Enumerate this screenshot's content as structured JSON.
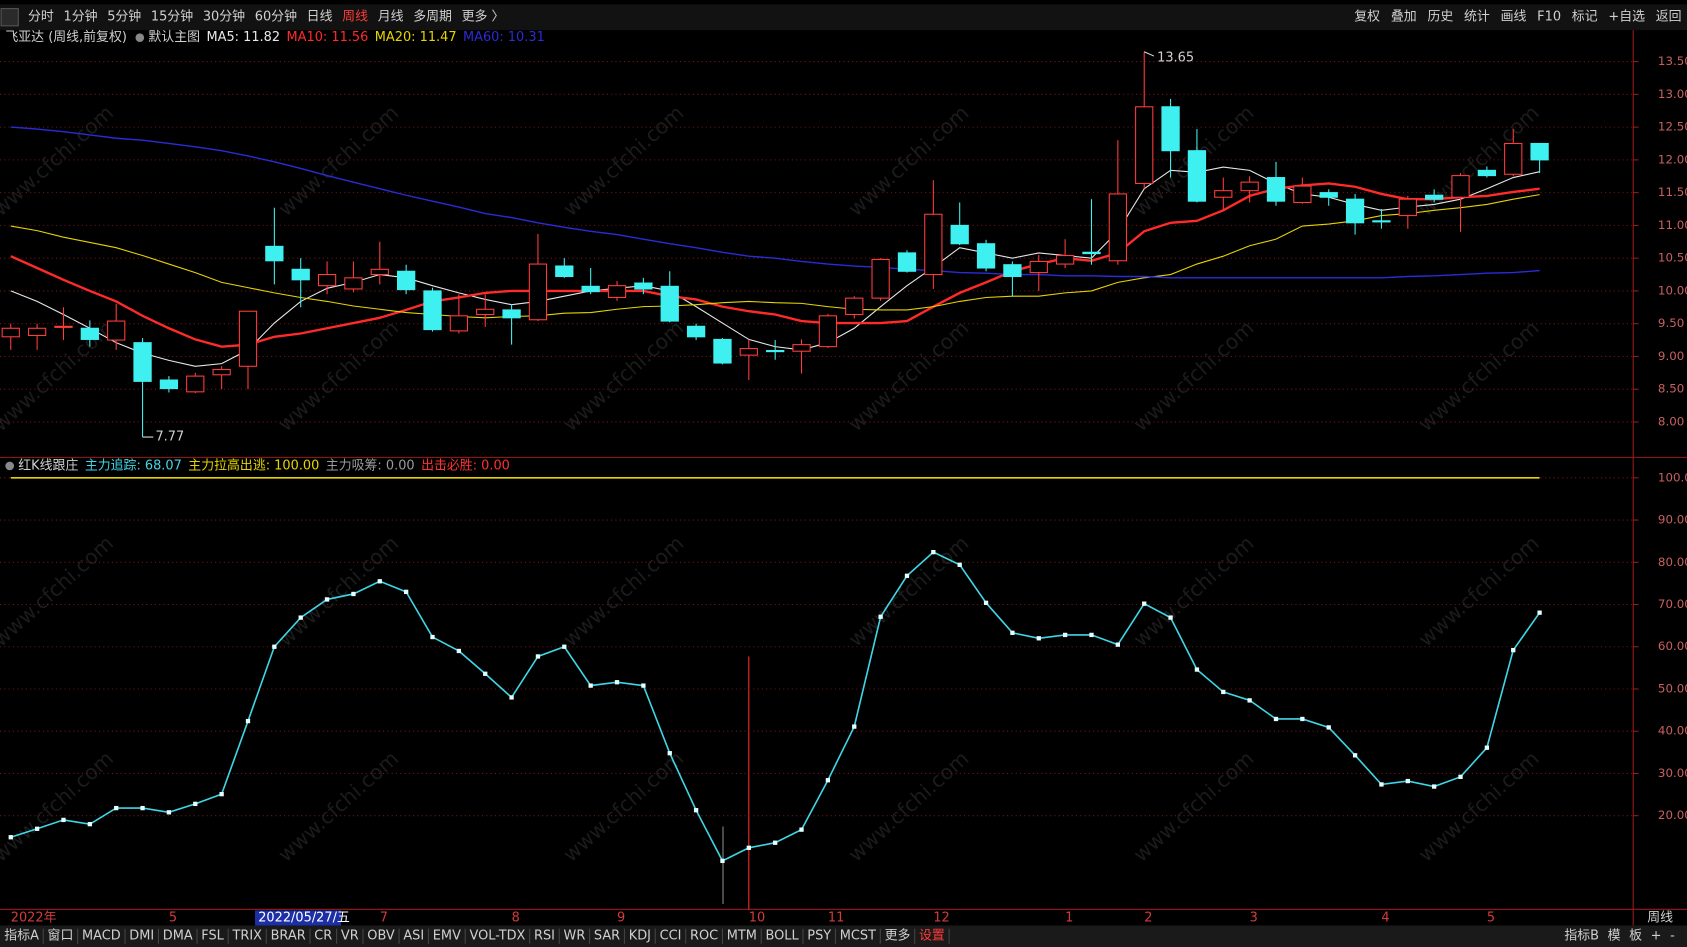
{
  "toolbar": {
    "left": [
      "分时",
      "1分钟",
      "5分钟",
      "15分钟",
      "30分钟",
      "60分钟",
      "日线",
      "周线",
      "月线",
      "多周期",
      "更多 〉"
    ],
    "active": "周线",
    "right": [
      "复权",
      "叠加",
      "历史",
      "统计",
      "画线",
      "F10",
      "标记",
      "+自选",
      "返回"
    ]
  },
  "bottom_tabs": {
    "left": [
      "指标A",
      "窗口",
      "MACD",
      "DMI",
      "DMA",
      "FSL",
      "TRIX",
      "BRAR",
      "CR",
      "VR",
      "OBV",
      "ASI",
      "EMV",
      "VOL-TDX",
      "RSI",
      "WR",
      "SAR",
      "KDJ",
      "CCI",
      "ROC",
      "MTM",
      "BOLL",
      "PSY",
      "MCST",
      "更多",
      "设置"
    ],
    "highlight": "设置",
    "right": [
      "指标B",
      "模",
      "板",
      "+",
      "-"
    ]
  },
  "watermark": "www.cfchi.com",
  "chart_data": [
    {
      "type": "candlestick",
      "title": "飞亚达 (周线,前复权)",
      "subtitle": "默认主图",
      "categories": [
        "2022年",
        null,
        null,
        null,
        null,
        null,
        "5",
        null,
        null,
        null,
        null,
        null,
        null,
        null,
        "7",
        null,
        null,
        null,
        null,
        "8",
        null,
        null,
        null,
        "9",
        null,
        null,
        null,
        null,
        "10",
        null,
        null,
        "11",
        null,
        null,
        null,
        "12",
        null,
        null,
        null,
        null,
        "1",
        null,
        null,
        "2",
        null,
        null,
        null,
        "3",
        null,
        null,
        null,
        null,
        "4",
        null,
        null,
        null,
        "5",
        null,
        null
      ],
      "cursor_label": "2022/05/27/五",
      "period_label": "周线",
      "open": [
        9.3,
        9.32,
        9.45,
        9.43,
        9.25,
        9.21,
        8.64,
        8.46,
        8.72,
        8.85,
        10.68,
        10.33,
        10.08,
        10.03,
        10.25,
        10.3,
        10.0,
        9.39,
        9.64,
        9.71,
        9.56,
        10.38,
        10.07,
        9.9,
        10.12,
        10.07,
        9.46,
        9.26,
        9.02,
        9.09,
        9.08,
        9.15,
        9.64,
        9.89,
        10.58,
        10.25,
        11.0,
        10.72,
        10.4,
        10.28,
        10.41,
        10.59,
        10.46,
        11.64,
        12.81,
        12.14,
        11.43,
        11.53,
        11.73,
        11.35,
        11.5,
        11.4,
        11.07,
        11.15,
        11.46,
        11.43,
        11.84,
        11.78,
        12.25
      ],
      "high": [
        9.5,
        9.5,
        9.75,
        9.55,
        9.8,
        9.28,
        8.7,
        8.75,
        8.85,
        9.69,
        11.27,
        10.5,
        10.45,
        10.45,
        10.75,
        10.4,
        10.05,
        9.95,
        9.95,
        9.8,
        10.87,
        10.5,
        10.35,
        10.15,
        10.2,
        10.3,
        9.5,
        9.28,
        9.26,
        9.25,
        9.26,
        9.65,
        9.92,
        10.5,
        10.62,
        11.69,
        11.35,
        10.78,
        10.45,
        10.55,
        10.79,
        11.4,
        12.3,
        13.65,
        12.93,
        12.47,
        11.73,
        11.75,
        11.97,
        11.73,
        11.55,
        11.48,
        11.25,
        11.45,
        11.55,
        11.8,
        11.9,
        12.47,
        12.25
      ],
      "low": [
        9.1,
        9.1,
        9.25,
        9.15,
        9.1,
        7.77,
        8.45,
        8.44,
        8.5,
        8.5,
        10.1,
        9.75,
        9.95,
        9.98,
        10.1,
        9.95,
        9.38,
        9.35,
        9.45,
        9.18,
        9.54,
        10.2,
        9.95,
        9.85,
        9.95,
        9.52,
        9.25,
        8.88,
        8.64,
        8.95,
        8.74,
        9.13,
        9.58,
        9.85,
        10.28,
        10.03,
        10.7,
        10.3,
        9.92,
        10.0,
        10.35,
        10.4,
        10.4,
        11.56,
        11.73,
        11.35,
        11.23,
        11.35,
        11.3,
        11.33,
        11.3,
        10.86,
        10.95,
        10.95,
        11.35,
        10.9,
        11.73,
        11.75,
        11.8
      ],
      "close": [
        9.43,
        9.43,
        9.46,
        9.26,
        9.54,
        8.62,
        8.51,
        8.7,
        8.8,
        9.69,
        10.46,
        10.17,
        10.25,
        10.2,
        10.33,
        10.02,
        9.41,
        9.62,
        9.72,
        9.59,
        10.41,
        10.22,
        9.99,
        10.08,
        10.03,
        9.54,
        9.3,
        8.9,
        9.12,
        9.08,
        9.18,
        9.62,
        9.89,
        10.48,
        10.3,
        11.17,
        10.72,
        10.35,
        10.22,
        10.45,
        10.54,
        10.57,
        11.48,
        12.81,
        12.14,
        11.37,
        11.53,
        11.66,
        11.37,
        11.6,
        11.43,
        11.04,
        11.06,
        11.4,
        11.4,
        11.76,
        11.76,
        12.25,
        12.0
      ],
      "up_color": "#ff3b3b",
      "down_color": "#3ff0f0",
      "series": [
        {
          "label": "MA5: 11.82",
          "color": "#e8e8e8",
          "width": 1,
          "values": [
            10.0,
            9.84,
            9.64,
            9.43,
            9.21,
            9.05,
            8.94,
            8.85,
            8.89,
            9.1,
            9.51,
            9.84,
            10.04,
            10.13,
            10.25,
            10.2,
            10.08,
            9.97,
            9.87,
            9.79,
            9.84,
            9.92,
            10.0,
            10.04,
            10.08,
            10.0,
            9.76,
            9.51,
            9.26,
            9.15,
            9.1,
            9.21,
            9.43,
            9.76,
            10.08,
            10.36,
            10.66,
            10.58,
            10.5,
            10.58,
            10.54,
            10.5,
            10.91,
            11.56,
            11.84,
            11.81,
            11.89,
            11.84,
            11.64,
            11.48,
            11.43,
            11.32,
            11.23,
            11.28,
            11.32,
            11.4,
            11.56,
            11.73,
            11.82
          ]
        },
        {
          "label": "MA10: 11.56",
          "color": "#ff2a2a",
          "width": 2.2,
          "values": [
            10.53,
            10.35,
            10.17,
            10.0,
            9.84,
            9.62,
            9.43,
            9.26,
            9.15,
            9.18,
            9.3,
            9.35,
            9.43,
            9.51,
            9.59,
            9.71,
            9.84,
            9.9,
            9.97,
            10.0,
            10.0,
            10.0,
            10.0,
            10.0,
            10.0,
            9.92,
            9.87,
            9.76,
            9.69,
            9.64,
            9.54,
            9.51,
            9.51,
            9.51,
            9.54,
            9.76,
            9.97,
            10.13,
            10.3,
            10.41,
            10.5,
            10.46,
            10.58,
            10.91,
            11.04,
            11.07,
            11.23,
            11.45,
            11.56,
            11.61,
            11.64,
            11.59,
            11.48,
            11.4,
            11.4,
            11.43,
            11.45,
            11.51,
            11.56
          ]
        },
        {
          "label": "MA20: 11.47",
          "color": "#e6d400",
          "width": 1,
          "values": [
            10.99,
            10.92,
            10.82,
            10.74,
            10.66,
            10.54,
            10.41,
            10.28,
            10.13,
            10.05,
            9.97,
            9.9,
            9.84,
            9.77,
            9.72,
            9.67,
            9.64,
            9.61,
            9.59,
            9.61,
            9.62,
            9.66,
            9.67,
            9.72,
            9.76,
            9.77,
            9.79,
            9.82,
            9.84,
            9.82,
            9.81,
            9.76,
            9.72,
            9.71,
            9.71,
            9.76,
            9.84,
            9.9,
            9.92,
            9.92,
            9.97,
            10.0,
            10.13,
            10.2,
            10.25,
            10.41,
            10.53,
            10.69,
            10.79,
            10.99,
            11.02,
            11.07,
            11.15,
            11.18,
            11.23,
            11.27,
            11.32,
            11.4,
            11.47
          ]
        },
        {
          "label": "MA60: 10.31",
          "color": "#2b2bd8",
          "width": 1.3,
          "values": [
            12.5,
            12.47,
            12.43,
            12.38,
            12.33,
            12.3,
            12.25,
            12.2,
            12.14,
            12.06,
            11.97,
            11.87,
            11.76,
            11.66,
            11.56,
            11.46,
            11.37,
            11.28,
            11.18,
            11.12,
            11.04,
            10.97,
            10.91,
            10.86,
            10.79,
            10.72,
            10.66,
            10.59,
            10.53,
            10.5,
            10.45,
            10.41,
            10.38,
            10.36,
            10.33,
            10.31,
            10.28,
            10.27,
            10.25,
            10.25,
            10.23,
            10.23,
            10.22,
            10.22,
            10.2,
            10.2,
            10.2,
            10.2,
            10.2,
            10.2,
            10.2,
            10.2,
            10.2,
            10.22,
            10.23,
            10.25,
            10.27,
            10.28,
            10.31
          ]
        }
      ],
      "annotations": {
        "high": "13.65",
        "low": "7.77"
      },
      "ylim": [
        7.46,
        13.98
      ],
      "yticks": [
        {
          "value": 13.5,
          "label": "13.50"
        },
        {
          "value": 13,
          "label": "13.00"
        },
        {
          "value": 12.5,
          "label": "12.50"
        },
        {
          "value": 12,
          "label": "12.00"
        },
        {
          "value": 11.5,
          "label": "11.50"
        },
        {
          "value": 11,
          "label": "11.00"
        },
        {
          "value": 10.5,
          "label": "10.50"
        },
        {
          "value": 10,
          "label": "10.00"
        },
        {
          "value": 9.5,
          "label": "9.50"
        },
        {
          "value": 9,
          "label": "9.00"
        },
        {
          "value": 8.5,
          "label": "8.50"
        },
        {
          "value": 8,
          "label": "8.00"
        }
      ],
      "grid": true
    },
    {
      "type": "line",
      "title": "红K线跟庄",
      "readouts": [
        {
          "label": "主力追踪: 68.07",
          "color": "#3fd6e6"
        },
        {
          "label": "主力拉高出逃: 100.00",
          "color": "#e6d400"
        },
        {
          "label": "主力吸筹: 0.00",
          "color": "#9a9a9a"
        },
        {
          "label": "出击必胜: 0.00",
          "color": "#ff3030"
        }
      ],
      "series": [
        {
          "color": "#3fd6e6",
          "markers": true,
          "values": [
            14.9,
            16.9,
            19.0,
            18.0,
            21.8,
            21.8,
            20.8,
            22.8,
            25.1,
            42.4,
            60.0,
            66.9,
            71.2,
            72.5,
            75.5,
            73.0,
            62.3,
            59.0,
            53.6,
            48.0,
            57.7,
            60.0,
            50.8,
            51.6,
            50.8,
            34.8,
            21.3,
            9.3,
            12.4,
            13.6,
            16.7,
            28.4,
            41.1,
            67.1,
            76.8,
            82.4,
            79.4,
            70.4,
            63.3,
            62.0,
            62.8,
            62.8,
            60.5,
            70.2,
            66.9,
            54.6,
            49.3,
            47.3,
            42.9,
            42.9,
            40.9,
            34.3,
            27.4,
            28.2,
            26.9,
            29.2,
            36.1,
            59.2,
            68.07
          ]
        },
        {
          "color": "#e6d400",
          "markers": false,
          "values": [
            100,
            100,
            100,
            100,
            100,
            100,
            100,
            100,
            100,
            100,
            100,
            100,
            100,
            100,
            100,
            100,
            100,
            100,
            100,
            100,
            100,
            100,
            100,
            100,
            100,
            100,
            100,
            100,
            100,
            100,
            100,
            100,
            100,
            100,
            100,
            100,
            100,
            100,
            100,
            100,
            100,
            100,
            100,
            100,
            100,
            100,
            100,
            100,
            100,
            100,
            100,
            100,
            100,
            100,
            100,
            100,
            100,
            100,
            100
          ]
        }
      ],
      "ylim": [
        -2.17,
        104.84
      ],
      "yticks": [
        {
          "value": 100,
          "label": "100.0"
        },
        {
          "value": 90,
          "label": "90.00"
        },
        {
          "value": 80,
          "label": "80.00"
        },
        {
          "value": 70,
          "label": "70.00"
        },
        {
          "value": 60,
          "label": "60.00"
        },
        {
          "value": 50,
          "label": "50.00"
        },
        {
          "value": 40,
          "label": "40.00"
        },
        {
          "value": 30,
          "label": "30.00"
        },
        {
          "value": 20,
          "label": "20.00"
        }
      ],
      "grid": true
    }
  ]
}
